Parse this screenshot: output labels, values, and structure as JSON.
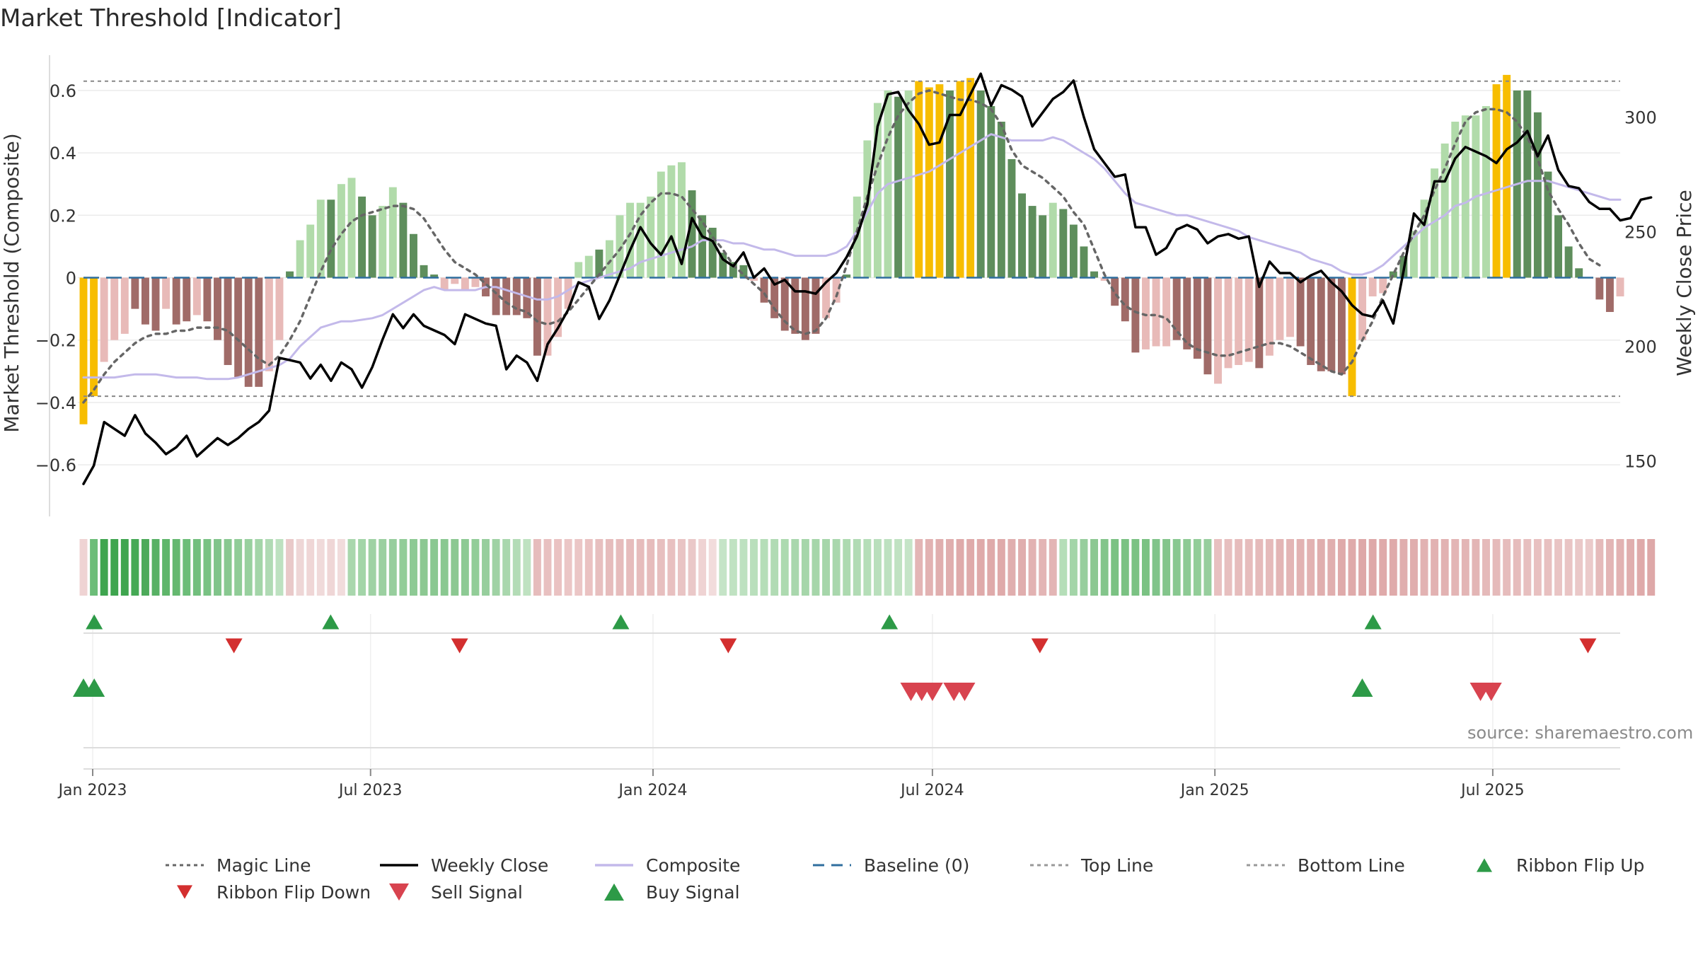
{
  "chart_data": {
    "type": "bar",
    "title": "Market Threshold [Indicator]",
    "ylabel_left": "Market Threshold (Composite)",
    "ylabel_right": "Weekly Close Price",
    "ylim_left": [
      -0.72,
      0.72
    ],
    "ylim_right": [
      132,
      328
    ],
    "yticks_left": [
      "0.6",
      "0.4",
      "0.2",
      "0",
      "−0.2",
      "−0.4",
      "−0.6"
    ],
    "yticks_left_values": [
      0.6,
      0.4,
      0.2,
      0,
      -0.2,
      -0.4,
      -0.6
    ],
    "yticks_right": [
      "300",
      "250",
      "200",
      "150"
    ],
    "yticks_right_values": [
      300,
      250,
      200,
      150
    ],
    "top_line": 0.63,
    "bottom_line": -0.38,
    "baseline": 0,
    "x_start": "2022-12-26",
    "x_end": "2025-09-22",
    "x_ticks": [
      {
        "label": "Jan 2023",
        "date": "2023-01-01"
      },
      {
        "label": "Jul 2023",
        "date": "2023-07-01"
      },
      {
        "label": "Jan 2024",
        "date": "2024-01-01"
      },
      {
        "label": "Jul 2024",
        "date": "2024-07-01"
      },
      {
        "label": "Jan 2025",
        "date": "2025-01-01"
      },
      {
        "label": "Jul 2025",
        "date": "2025-07-01"
      }
    ],
    "composite_bars": [
      -0.47,
      -0.38,
      -0.27,
      -0.2,
      -0.18,
      -0.1,
      -0.15,
      -0.17,
      -0.1,
      -0.15,
      -0.14,
      -0.12,
      -0.14,
      -0.2,
      -0.28,
      -0.32,
      -0.35,
      -0.35,
      -0.3,
      -0.2,
      0.02,
      0.12,
      0.17,
      0.25,
      0.25,
      0.3,
      0.32,
      0.26,
      0.2,
      0.23,
      0.29,
      0.24,
      0.14,
      0.04,
      0.01,
      -0.04,
      -0.02,
      -0.04,
      -0.03,
      -0.06,
      -0.12,
      -0.12,
      -0.12,
      -0.13,
      -0.25,
      -0.25,
      -0.19,
      -0.1,
      0.05,
      0.07,
      0.09,
      0.12,
      0.2,
      0.24,
      0.24,
      0.26,
      0.34,
      0.36,
      0.37,
      0.28,
      0.2,
      0.16,
      0.08,
      0.05,
      0.04,
      -0.01,
      -0.08,
      -0.13,
      -0.17,
      -0.18,
      -0.2,
      -0.18,
      -0.13,
      -0.08,
      0.01,
      0.26,
      0.44,
      0.56,
      0.6,
      0.58,
      0.6,
      0.63,
      0.61,
      0.62,
      0.6,
      0.63,
      0.64,
      0.6,
      0.55,
      0.5,
      0.38,
      0.27,
      0.23,
      0.2,
      0.24,
      0.22,
      0.17,
      0.1,
      0.02,
      -0.01,
      -0.09,
      -0.14,
      -0.24,
      -0.23,
      -0.22,
      -0.22,
      -0.2,
      -0.23,
      -0.26,
      -0.31,
      -0.34,
      -0.29,
      -0.28,
      -0.27,
      -0.29,
      -0.25,
      -0.2,
      -0.19,
      -0.22,
      -0.28,
      -0.3,
      -0.3,
      -0.31,
      -0.38,
      -0.2,
      -0.06,
      -0.05,
      0.02,
      0.07,
      0.15,
      0.25,
      0.35,
      0.43,
      0.5,
      0.52,
      0.52,
      0.55,
      0.62,
      0.65,
      0.6,
      0.6,
      0.53,
      0.34,
      0.2,
      0.1,
      0.03,
      0,
      -0.07,
      -0.11,
      -0.06
    ],
    "bar_classes": [
      "y",
      "y",
      "r1",
      "r1",
      "r1",
      "r2",
      "r2",
      "r2",
      "r1",
      "r2",
      "r2",
      "r1",
      "r2",
      "r2",
      "r2",
      "r2",
      "r2",
      "r2",
      "r1",
      "r1",
      "g1",
      "g2",
      "g2",
      "g2",
      "g1",
      "g2",
      "g2",
      "g1",
      "g1",
      "g2",
      "g2",
      "g1",
      "g1",
      "g1",
      "g1",
      "r1",
      "r1",
      "r1",
      "r1",
      "r2",
      "r2",
      "r2",
      "r2",
      "r2",
      "r2",
      "r1",
      "r1",
      "r1",
      "g2",
      "g2",
      "g1",
      "g2",
      "g2",
      "g2",
      "g2",
      "g2",
      "g2",
      "g2",
      "g2",
      "g1",
      "g1",
      "g1",
      "g1",
      "g1",
      "g1",
      "r1",
      "r2",
      "r2",
      "r2",
      "r2",
      "r2",
      "r2",
      "r1",
      "r1",
      "g1",
      "g2",
      "g2",
      "g2",
      "g2",
      "g1",
      "g2",
      "y",
      "y",
      "y",
      "g1",
      "y",
      "y",
      "g1",
      "g1",
      "g1",
      "g1",
      "g1",
      "g1",
      "g1",
      "g2",
      "g1",
      "g1",
      "g1",
      "g1",
      "r1",
      "r2",
      "r2",
      "r2",
      "r1",
      "r1",
      "r1",
      "r2",
      "r2",
      "r2",
      "r2",
      "r1",
      "r1",
      "r1",
      "r1",
      "r2",
      "r1",
      "r1",
      "r1",
      "r2",
      "r2",
      "r2",
      "r2",
      "r2",
      "y",
      "r1",
      "r1",
      "r1",
      "g1",
      "g1",
      "g2",
      "g2",
      "g2",
      "g2",
      "g2",
      "g2",
      "g2",
      "g2",
      "y",
      "y",
      "g1",
      "g1",
      "g1",
      "g1",
      "g1",
      "g1",
      "g1",
      "g1",
      "r2",
      "r2",
      "r1"
    ],
    "series": [
      {
        "name": "Weekly Close",
        "values": [
          140,
          148,
          167,
          164,
          161,
          170,
          162,
          158,
          153,
          156,
          161,
          152,
          156,
          160,
          157,
          160,
          164,
          167,
          172,
          195,
          194,
          193,
          186,
          192,
          185,
          193,
          190,
          182,
          191,
          203,
          214,
          208,
          214,
          209,
          207,
          205,
          201,
          214,
          212,
          210,
          209,
          190,
          196,
          193,
          185,
          201,
          208,
          216,
          228,
          226,
          212,
          220,
          231,
          242,
          252,
          245,
          240,
          248,
          236,
          256,
          248,
          246,
          238,
          235,
          241,
          230,
          234,
          227,
          229,
          224,
          224,
          223,
          228,
          232,
          239,
          248,
          262,
          296,
          310,
          311,
          303,
          297,
          288,
          289,
          301,
          301,
          310,
          319,
          305,
          314,
          312,
          309,
          296,
          302,
          308,
          311,
          316,
          300,
          286,
          280,
          274,
          275,
          252,
          252,
          240,
          243,
          251,
          253,
          251,
          245,
          248,
          249,
          247,
          248,
          226,
          237,
          232,
          232,
          228,
          231,
          233,
          228,
          224,
          218,
          214,
          213,
          220,
          210,
          233,
          258,
          253,
          272,
          272,
          282,
          287,
          285,
          283,
          280,
          286,
          289,
          294,
          283,
          292,
          277,
          270,
          269,
          263,
          260,
          260,
          255,
          256,
          264,
          265
        ],
        "axis": "right"
      },
      {
        "name": "Magic Line",
        "values": [
          -0.4,
          -0.36,
          -0.31,
          -0.27,
          -0.24,
          -0.21,
          -0.19,
          -0.18,
          -0.18,
          -0.17,
          -0.17,
          -0.16,
          -0.16,
          -0.16,
          -0.17,
          -0.2,
          -0.23,
          -0.26,
          -0.28,
          -0.25,
          -0.2,
          -0.14,
          -0.06,
          0.02,
          0.09,
          0.14,
          0.18,
          0.2,
          0.21,
          0.22,
          0.23,
          0.23,
          0.22,
          0.19,
          0.14,
          0.09,
          0.05,
          0.03,
          0.01,
          -0.02,
          -0.05,
          -0.08,
          -0.1,
          -0.11,
          -0.14,
          -0.15,
          -0.14,
          -0.11,
          -0.07,
          -0.03,
          0.01,
          0.05,
          0.09,
          0.14,
          0.2,
          0.24,
          0.27,
          0.27,
          0.26,
          0.22,
          0.18,
          0.13,
          0.09,
          0.04,
          0.01,
          -0.02,
          -0.05,
          -0.1,
          -0.14,
          -0.17,
          -0.18,
          -0.17,
          -0.13,
          -0.06,
          0.04,
          0.15,
          0.26,
          0.36,
          0.45,
          0.52,
          0.56,
          0.59,
          0.6,
          0.59,
          0.58,
          0.57,
          0.57,
          0.56,
          0.54,
          0.49,
          0.41,
          0.36,
          0.34,
          0.32,
          0.29,
          0.26,
          0.21,
          0.17,
          0.09,
          0.01,
          -0.05,
          -0.09,
          -0.11,
          -0.12,
          -0.12,
          -0.13,
          -0.17,
          -0.21,
          -0.23,
          -0.24,
          -0.25,
          -0.25,
          -0.24,
          -0.23,
          -0.22,
          -0.21,
          -0.21,
          -0.22,
          -0.24,
          -0.26,
          -0.28,
          -0.3,
          -0.31,
          -0.27,
          -0.2,
          -0.14,
          -0.06,
          0.01,
          0.08,
          0.14,
          0.2,
          0.28,
          0.35,
          0.43,
          0.5,
          0.53,
          0.54,
          0.54,
          0.53,
          0.5,
          0.45,
          0.38,
          0.28,
          0.22,
          0.17,
          0.11,
          0.06,
          0.04
        ],
        "axis": "left"
      },
      {
        "name": "Composite",
        "values": [
          -0.32,
          -0.32,
          -0.32,
          -0.32,
          -0.315,
          -0.31,
          -0.31,
          -0.31,
          -0.315,
          -0.32,
          -0.32,
          -0.32,
          -0.325,
          -0.325,
          -0.325,
          -0.32,
          -0.31,
          -0.3,
          -0.29,
          -0.28,
          -0.26,
          -0.22,
          -0.19,
          -0.16,
          -0.15,
          -0.14,
          -0.14,
          -0.135,
          -0.13,
          -0.12,
          -0.1,
          -0.08,
          -0.06,
          -0.04,
          -0.03,
          -0.04,
          -0.04,
          -0.04,
          -0.04,
          -0.03,
          -0.03,
          -0.04,
          -0.05,
          -0.06,
          -0.07,
          -0.07,
          -0.06,
          -0.04,
          -0.02,
          -0.01,
          0,
          0.01,
          0.02,
          0.03,
          0.05,
          0.06,
          0.07,
          0.08,
          0.09,
          0.1,
          0.12,
          0.12,
          0.12,
          0.11,
          0.11,
          0.1,
          0.09,
          0.09,
          0.08,
          0.07,
          0.07,
          0.07,
          0.07,
          0.08,
          0.1,
          0.15,
          0.21,
          0.27,
          0.3,
          0.31,
          0.32,
          0.33,
          0.34,
          0.36,
          0.38,
          0.4,
          0.42,
          0.44,
          0.46,
          0.45,
          0.44,
          0.44,
          0.44,
          0.44,
          0.45,
          0.44,
          0.42,
          0.4,
          0.38,
          0.35,
          0.31,
          0.27,
          0.24,
          0.23,
          0.22,
          0.21,
          0.2,
          0.2,
          0.19,
          0.18,
          0.17,
          0.16,
          0.15,
          0.13,
          0.12,
          0.11,
          0.1,
          0.09,
          0.08,
          0.06,
          0.05,
          0.04,
          0.02,
          0.01,
          0.01,
          0.02,
          0.04,
          0.07,
          0.1,
          0.13,
          0.16,
          0.18,
          0.2,
          0.23,
          0.24,
          0.26,
          0.27,
          0.28,
          0.29,
          0.3,
          0.31,
          0.31,
          0.31,
          0.3,
          0.29,
          0.28,
          0.27,
          0.26,
          0.25,
          0.25
        ],
        "axis": "left"
      }
    ],
    "ribbon_colors": [
      "#efd3d3",
      "#6cbd78",
      "#3fa54f",
      "#3fa54f",
      "#3fa54f",
      "#45a955",
      "#4daa5a",
      "#58b165",
      "#5fb66b",
      "#65b870",
      "#6cbd78",
      "#72bf7d",
      "#79c283",
      "#80c48a",
      "#88c890",
      "#90cc97",
      "#98d09e",
      "#a3d5a8",
      "#b0dab4",
      "#bde1c0",
      "#e9c9c9",
      "#eed6d6",
      "#efd6d6",
      "#f0dada",
      "#efd6d6",
      "#f1dcdc",
      "#a9d7ad",
      "#a3d5a8",
      "#9fd2a4",
      "#9bd0a0",
      "#97ce9d",
      "#92cd98",
      "#8dca94",
      "#8cc892",
      "#8ac891",
      "#8ac891",
      "#8cc892",
      "#8dca94",
      "#92cd98",
      "#97ce9d",
      "#9fd2a4",
      "#a9d7ad",
      "#b3dcb6",
      "#bfe2c1",
      "#e6bcbc",
      "#e8c0c0",
      "#eac2c2",
      "#ebc6c6",
      "#ebc6c6",
      "#eac2c2",
      "#e7bfbf",
      "#e6bcbc",
      "#e6bcbc",
      "#e6bcbc",
      "#e6bcbc",
      "#e6bcbc",
      "#e7bfbf",
      "#e8c0c0",
      "#e9c4c4",
      "#eac8c8",
      "#efd3d3",
      "#f2dcdc",
      "#c5e4c7",
      "#c0e2c2",
      "#bde1c0",
      "#b9dfbc",
      "#b5deb8",
      "#b1dbb4",
      "#addab0",
      "#a9d7ad",
      "#a6d6aa",
      "#a6d6aa",
      "#a6d6aa",
      "#a9d7ad",
      "#addab0",
      "#b1dbb4",
      "#b5deb8",
      "#b9dfbc",
      "#bde1c0",
      "#c0e2c2",
      "#c5e4c7",
      "#e3b5b5",
      "#e2b2b2",
      "#e0aeae",
      "#e0aeae",
      "#dfaaaa",
      "#dfaaaa",
      "#dfaaaa",
      "#dfaaaa",
      "#dfaaaa",
      "#e0aeae",
      "#e0aeae",
      "#e2b2b2",
      "#e3b5b5",
      "#e3b5b5",
      "#b5deb8",
      "#a3d5a8",
      "#97ce9d",
      "#8cc892",
      "#83c58b",
      "#7bc283",
      "#7bc283",
      "#7bc283",
      "#7bc283",
      "#80c48a",
      "#83c58b",
      "#88c890",
      "#8dca94",
      "#92cd98",
      "#97ce9d",
      "#e8c0c0",
      "#e7bfbf",
      "#e6bcbc",
      "#e6bcbc",
      "#e5baba",
      "#e5baba",
      "#e3b5b5",
      "#e3b5b5",
      "#e2b2b2",
      "#e2b2b2",
      "#e0aeae",
      "#e0aeae",
      "#dfaaaa",
      "#dfaaaa",
      "#dea8a8",
      "#dea8a8",
      "#dfaaaa",
      "#dfaaaa",
      "#e0aeae",
      "#e0aeae",
      "#e2b2b2",
      "#e2b2b2",
      "#e2b2b2",
      "#e3b5b5",
      "#e3b5b5",
      "#e3b5b5",
      "#e5baba",
      "#e5baba",
      "#e6bcbc",
      "#e6bcbc",
      "#e7bfbf",
      "#e8c0c0",
      "#e8c0c0",
      "#e9c4c4",
      "#e9c4c4",
      "#eac8c8",
      "#ebcaca",
      "#e5baba",
      "#e3b5b5",
      "#e2b2b2",
      "#e0aeae",
      "#dfaaaa",
      "#dea8a8"
    ],
    "ribbon_flip_up_dates": [
      "2023-01-02",
      "2023-06-05",
      "2023-12-11",
      "2024-06-03",
      "2025-04-14"
    ],
    "ribbon_flip_down_dates": [
      "2023-04-03",
      "2023-08-28",
      "2024-02-19",
      "2024-09-09",
      "2025-09-01"
    ],
    "buy_signal_dates": [
      "2022-12-26",
      "2023-01-02",
      "2025-04-07"
    ],
    "sell_signal_dates": [
      "2024-06-17",
      "2024-06-24",
      "2024-07-01",
      "2024-07-15",
      "2024-07-22",
      "2025-06-23",
      "2025-06-30"
    ],
    "legend": [
      {
        "label": "Magic Line",
        "kind": "dotted",
        "color": "#666666"
      },
      {
        "label": "Weekly Close",
        "kind": "line",
        "color": "#000000"
      },
      {
        "label": "Composite",
        "kind": "line",
        "color": "#c3b9ea"
      },
      {
        "label": "Baseline (0)",
        "kind": "dashed",
        "color": "#2f6e9e"
      },
      {
        "label": "Top Line",
        "kind": "dotted",
        "color": "#999999"
      },
      {
        "label": "Bottom Line",
        "kind": "dotted",
        "color": "#999999"
      },
      {
        "label": "Ribbon Flip Up",
        "kind": "triangle-up",
        "color": "#2d9a47"
      },
      {
        "label": "Ribbon Flip Down",
        "kind": "triangle-down",
        "color": "#d32f2f"
      },
      {
        "label": "Sell Signal",
        "kind": "triangle-down-big",
        "color": "#d8434f"
      },
      {
        "label": "Buy Signal",
        "kind": "triangle-up-big",
        "color": "#2d9a47"
      }
    ],
    "colors": {
      "yellow": "#f7bd00",
      "green_dark": "#5e8e5c",
      "green_light": "#b1dbaa",
      "red_dark": "#a06b68",
      "red_light": "#e8bab8",
      "grid": "#ebebeb"
    },
    "source": "source: sharemaestro.com"
  }
}
